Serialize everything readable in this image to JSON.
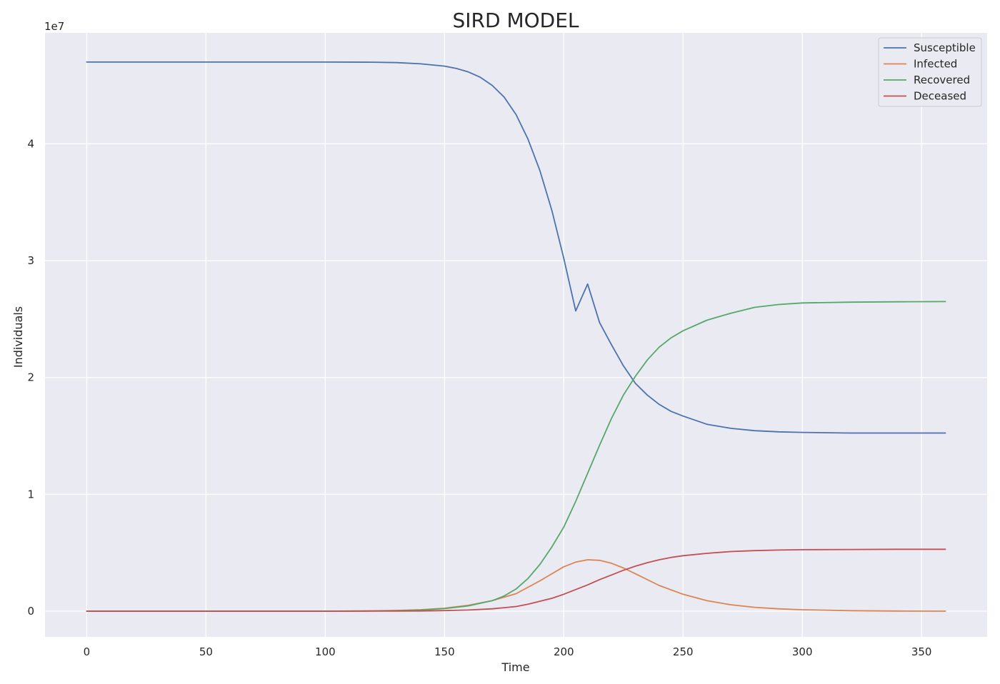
{
  "chart_data": {
    "type": "line",
    "title": "SIRD MODEL",
    "xlabel": "Time",
    "ylabel": "Individuals",
    "offset_text": "1e7",
    "xlim": [
      -17.5,
      377.5
    ],
    "ylim": [
      -0.22,
      4.95
    ],
    "xticks": [
      0,
      50,
      100,
      150,
      200,
      250,
      300,
      350
    ],
    "yticks": [
      0,
      1,
      2,
      3,
      4
    ],
    "grid": true,
    "legend_position": "top-right",
    "series": [
      {
        "name": "Susceptible",
        "color": "#4c72b0",
        "x": [
          0,
          50,
          100,
          120,
          130,
          140,
          150,
          155,
          160,
          165,
          170,
          175,
          180,
          185,
          190,
          195,
          200,
          205,
          210,
          215,
          220,
          225,
          230,
          235,
          240,
          245,
          250,
          260,
          270,
          280,
          290,
          300,
          320,
          340,
          360
        ],
        "y": [
          4.7,
          4.7,
          4.7,
          4.699,
          4.695,
          4.685,
          4.665,
          4.645,
          4.615,
          4.57,
          4.5,
          4.4,
          4.25,
          4.04,
          3.77,
          3.43,
          3.02,
          2.57,
          2.8,
          2.47,
          2.28,
          2.1,
          1.95,
          1.85,
          1.77,
          1.71,
          1.67,
          1.6,
          1.565,
          1.545,
          1.535,
          1.53,
          1.525,
          1.525,
          1.525
        ]
      },
      {
        "name": "Infected",
        "color": "#dd8452",
        "x": [
          0,
          50,
          100,
          120,
          130,
          140,
          150,
          160,
          170,
          180,
          190,
          195,
          200,
          205,
          210,
          215,
          220,
          225,
          230,
          240,
          250,
          260,
          270,
          280,
          290,
          300,
          320,
          340,
          360
        ],
        "y": [
          0,
          0,
          0,
          0.003,
          0.006,
          0.012,
          0.025,
          0.05,
          0.09,
          0.15,
          0.26,
          0.32,
          0.38,
          0.42,
          0.44,
          0.435,
          0.41,
          0.37,
          0.32,
          0.22,
          0.145,
          0.09,
          0.055,
          0.033,
          0.02,
          0.012,
          0.004,
          0.001,
          0.0
        ]
      },
      {
        "name": "Recovered",
        "color": "#55a868",
        "x": [
          0,
          50,
          100,
          120,
          130,
          140,
          150,
          160,
          170,
          175,
          180,
          185,
          190,
          195,
          200,
          205,
          210,
          215,
          220,
          225,
          230,
          235,
          240,
          245,
          250,
          260,
          270,
          280,
          290,
          300,
          320,
          340,
          360
        ],
        "y": [
          0,
          0,
          0,
          0.002,
          0.004,
          0.01,
          0.022,
          0.045,
          0.09,
          0.13,
          0.19,
          0.28,
          0.4,
          0.55,
          0.72,
          0.94,
          1.18,
          1.42,
          1.65,
          1.85,
          2.01,
          2.15,
          2.26,
          2.34,
          2.4,
          2.49,
          2.55,
          2.6,
          2.625,
          2.638,
          2.645,
          2.648,
          2.65
        ]
      },
      {
        "name": "Deceased",
        "color": "#c44e52",
        "x": [
          0,
          50,
          100,
          120,
          130,
          140,
          150,
          160,
          170,
          175,
          180,
          185,
          190,
          195,
          200,
          205,
          210,
          215,
          220,
          225,
          230,
          235,
          240,
          245,
          250,
          260,
          270,
          280,
          290,
          300,
          320,
          340,
          360
        ],
        "y": [
          0,
          0,
          0,
          0.0005,
          0.001,
          0.002,
          0.005,
          0.01,
          0.02,
          0.03,
          0.04,
          0.06,
          0.085,
          0.11,
          0.145,
          0.185,
          0.225,
          0.27,
          0.31,
          0.35,
          0.385,
          0.415,
          0.44,
          0.46,
          0.475,
          0.495,
          0.51,
          0.518,
          0.523,
          0.526,
          0.528,
          0.53,
          0.53
        ]
      }
    ]
  }
}
